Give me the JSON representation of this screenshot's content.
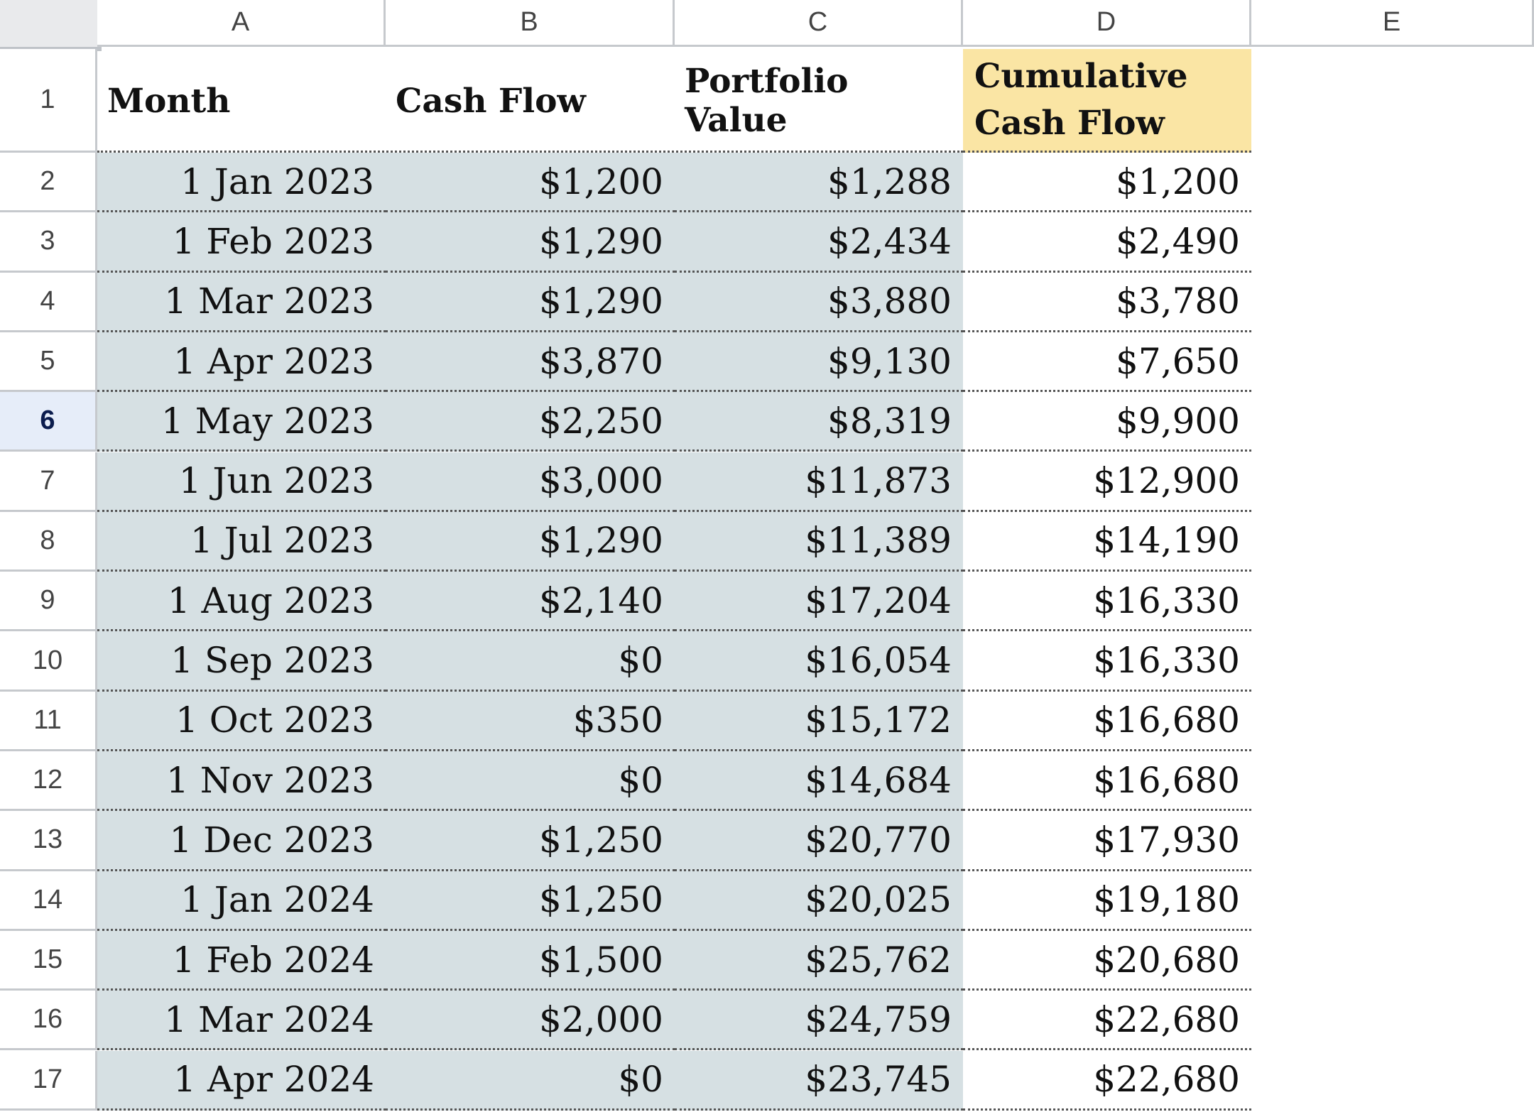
{
  "columns": [
    "A",
    "B",
    "C",
    "D",
    "E"
  ],
  "header": {
    "month": "Month",
    "cash_flow": "Cash Flow",
    "portfolio_value": "Portfolio Value",
    "cumulative_line1": "Cumulative",
    "cumulative_line2": "Cash Flow"
  },
  "row_numbers": [
    "1",
    "2",
    "3",
    "4",
    "5",
    "6",
    "7",
    "8",
    "9",
    "10",
    "11",
    "12",
    "13",
    "14",
    "15",
    "16",
    "17"
  ],
  "selected_row": "6",
  "rows": [
    {
      "month": "1 Jan 2023",
      "cash_flow": "$1,200",
      "portfolio": "$1,288",
      "cumulative": "$1,200"
    },
    {
      "month": "1 Feb 2023",
      "cash_flow": "$1,290",
      "portfolio": "$2,434",
      "cumulative": "$2,490"
    },
    {
      "month": "1 Mar 2023",
      "cash_flow": "$1,290",
      "portfolio": "$3,880",
      "cumulative": "$3,780"
    },
    {
      "month": "1 Apr 2023",
      "cash_flow": "$3,870",
      "portfolio": "$9,130",
      "cumulative": "$7,650"
    },
    {
      "month": "1 May 2023",
      "cash_flow": "$2,250",
      "portfolio": "$8,319",
      "cumulative": "$9,900"
    },
    {
      "month": "1 Jun 2023",
      "cash_flow": "$3,000",
      "portfolio": "$11,873",
      "cumulative": "$12,900"
    },
    {
      "month": "1 Jul 2023",
      "cash_flow": "$1,290",
      "portfolio": "$11,389",
      "cumulative": "$14,190"
    },
    {
      "month": "1 Aug 2023",
      "cash_flow": "$2,140",
      "portfolio": "$17,204",
      "cumulative": "$16,330"
    },
    {
      "month": "1 Sep 2023",
      "cash_flow": "$0",
      "portfolio": "$16,054",
      "cumulative": "$16,330"
    },
    {
      "month": "1 Oct 2023",
      "cash_flow": "$350",
      "portfolio": "$15,172",
      "cumulative": "$16,680"
    },
    {
      "month": "1 Nov 2023",
      "cash_flow": "$0",
      "portfolio": "$14,684",
      "cumulative": "$16,680"
    },
    {
      "month": "1 Dec 2023",
      "cash_flow": "$1,250",
      "portfolio": "$20,770",
      "cumulative": "$17,930"
    },
    {
      "month": "1 Jan 2024",
      "cash_flow": "$1,250",
      "portfolio": "$20,025",
      "cumulative": "$19,180"
    },
    {
      "month": "1 Feb 2024",
      "cash_flow": "$1,500",
      "portfolio": "$25,762",
      "cumulative": "$20,680"
    },
    {
      "month": "1 Mar 2024",
      "cash_flow": "$2,000",
      "portfolio": "$24,759",
      "cumulative": "$22,680"
    },
    {
      "month": "1 Apr 2024",
      "cash_flow": "$0",
      "portfolio": "$23,745",
      "cumulative": "$22,680"
    }
  ],
  "colors": {
    "data_shade": "#d6e0e3",
    "header_highlight": "#fae5a4",
    "selected_row_header": "#e6edf9"
  }
}
